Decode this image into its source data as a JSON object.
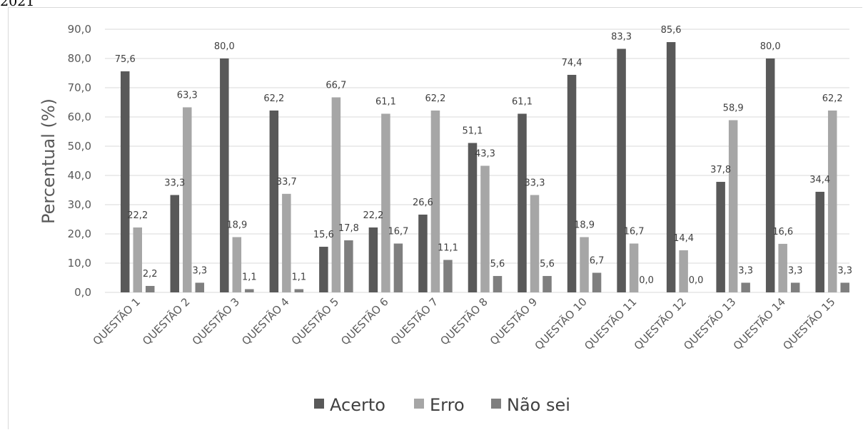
{
  "header": {
    "year_fragment": "2021"
  },
  "chart_data": {
    "type": "bar",
    "title": "",
    "xlabel": "",
    "ylabel": "Percentual (%)",
    "ylim": [
      0,
      90
    ],
    "yticks": [
      "0,0",
      "10,0",
      "20,0",
      "30,0",
      "40,0",
      "50,0",
      "60,0",
      "70,0",
      "80,0",
      "90,0"
    ],
    "grid": "horizontal",
    "legend_position": "bottom",
    "categories": [
      "QUESTÃO 1",
      "QUESTÃO 2",
      "QUESTÃO 3",
      "QUESTÃO 4",
      "QUESTÃO 5",
      "QUESTÃO 6",
      "QUESTÃO 7",
      "QUESTÃO 8",
      "QUESTÃO 9",
      "QUESTÃO 10",
      "QUESTÃO 11",
      "QUESTÃO 12",
      "QUESTÃO 13",
      "QUESTÃO 14",
      "QUESTÃO 15"
    ],
    "series": [
      {
        "name": "Acerto",
        "color": "#595959",
        "values": [
          75.6,
          33.3,
          80.0,
          62.2,
          15.6,
          22.2,
          26.6,
          51.1,
          61.1,
          74.4,
          83.3,
          85.6,
          37.8,
          80.0,
          34.4
        ],
        "labels": [
          "75,6",
          "33,3",
          "80,0",
          "62,2",
          "15,6",
          "22,2",
          "26,6",
          "51,1",
          "61,1",
          "74,4",
          "83,3",
          "85,6",
          "37,8",
          "80,0",
          "34,4"
        ]
      },
      {
        "name": "Erro",
        "color": "#a6a6a6",
        "values": [
          22.2,
          63.3,
          18.9,
          33.7,
          66.7,
          61.1,
          62.2,
          43.3,
          33.3,
          18.9,
          16.7,
          14.4,
          58.9,
          16.6,
          62.2
        ],
        "labels": [
          "22,2",
          "63,3",
          "18,9",
          "33,7",
          "66,7",
          "61,1",
          "62,2",
          "43,3",
          "33,3",
          "18,9",
          "16,7",
          "14,4",
          "58,9",
          "16,6",
          "62,2"
        ]
      },
      {
        "name": "Não sei",
        "color": "#7f7f7f",
        "values": [
          2.2,
          3.3,
          1.1,
          1.1,
          17.8,
          16.7,
          11.1,
          5.6,
          5.6,
          6.7,
          0.0,
          0.0,
          3.3,
          3.3,
          3.3
        ],
        "labels": [
          "2,2",
          "3,3",
          "1,1",
          "1,1",
          "17,8",
          "16,7",
          "11,1",
          "5,6",
          "5,6",
          "6,7",
          "0,0",
          "0,0",
          "3,3",
          "3,3",
          "3,3"
        ]
      }
    ]
  }
}
